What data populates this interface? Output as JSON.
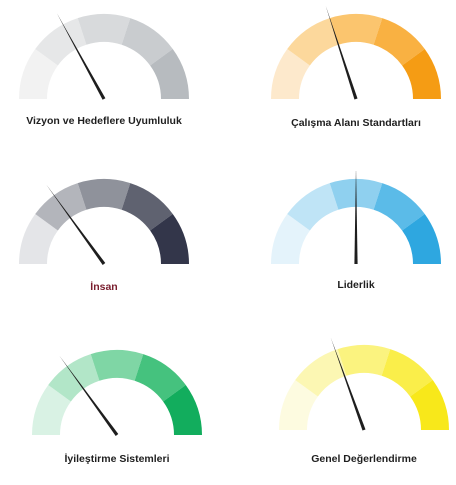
{
  "chart_data": [
    {
      "type": "gauge",
      "label": "Vizyon ve Hedeflere Uyumluluk",
      "label_color": "#1f1f1f",
      "segment_colors": [
        "#f2f2f2",
        "#e6e7e8",
        "#d8dadc",
        "#c9cccf",
        "#b7bbbf"
      ],
      "needle_fraction": 0.34
    },
    {
      "type": "gauge",
      "label": "Çalışma Alanı Standartları",
      "label_color": "#1f1f1f",
      "segment_colors": [
        "#fde9cc",
        "#fcd89c",
        "#fbc56e",
        "#f9b142",
        "#f59c14"
      ],
      "needle_fraction": 0.4
    },
    {
      "type": "gauge",
      "label": "İnsan",
      "label_color": "#7a1e2e",
      "segment_colors": [
        "#e4e5e8",
        "#b3b5bb",
        "#8f929b",
        "#5f6270",
        "#33364a"
      ],
      "needle_fraction": 0.3
    },
    {
      "type": "gauge",
      "label": "Liderlik",
      "label_color": "#1f1f1f",
      "segment_colors": [
        "#e4f3fb",
        "#bfe4f6",
        "#8fd0ef",
        "#5bbbe8",
        "#2ea7e0"
      ],
      "needle_fraction": 0.5
    },
    {
      "type": "gauge",
      "label": "İyileştirme Sistemleri",
      "label_color": "#1f1f1f",
      "segment_colors": [
        "#d9f2e4",
        "#b2e6c8",
        "#7fd6a5",
        "#45c27e",
        "#12ad5d"
      ],
      "needle_fraction": 0.3
    },
    {
      "type": "gauge",
      "label": "Genel Değerlendirme",
      "label_color": "#1f1f1f",
      "segment_colors": [
        "#fdfbe0",
        "#fcf7b3",
        "#fbf37f",
        "#faee4a",
        "#f8e81a"
      ],
      "needle_fraction": 0.39
    }
  ]
}
